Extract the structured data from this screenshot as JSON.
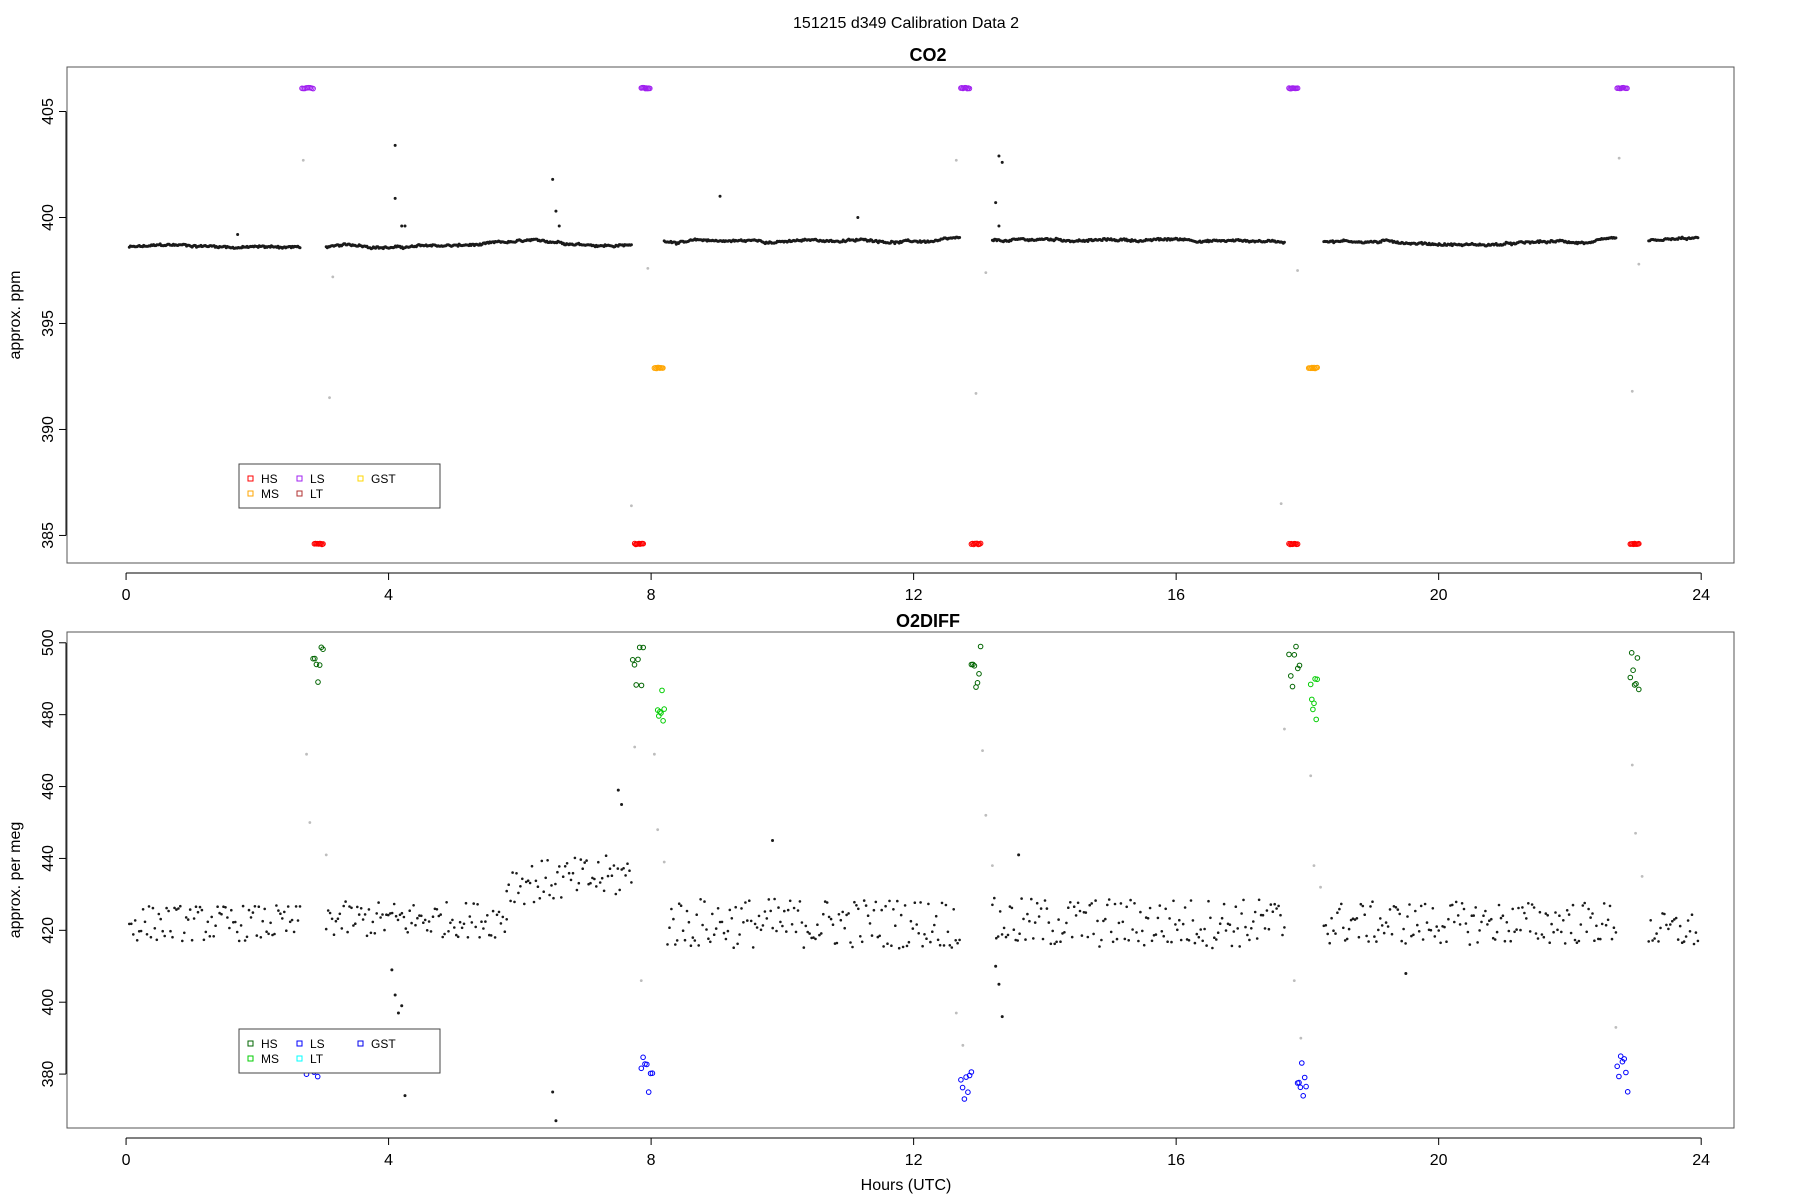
{
  "figure": {
    "title": "151215   d349   Calibration Data 2",
    "xlabel": "Hours (UTC)"
  },
  "colors": {
    "ambient": "#1a1a1a",
    "transition": "#bdbdbd",
    "co2": {
      "HS": "#ff0000",
      "MS": "#ffa500",
      "LS": "#a020f0",
      "LT": "#b03030",
      "GST": "#ffd700"
    },
    "o2diff": {
      "HS": "#006400",
      "MS": "#00cd00",
      "LS": "#0000ff",
      "LT": "#00ffff",
      "GST": "#0000ee"
    }
  },
  "chart_data": [
    {
      "type": "scatter",
      "title": "CO2",
      "xlabel": "",
      "ylabel": "approx. ppm",
      "xlim": [
        -0.9,
        24.5
      ],
      "ylim": [
        383.7,
        407.1
      ],
      "xticks": [
        "0",
        "4",
        "8",
        "12",
        "16",
        "20",
        "24"
      ],
      "yticks": [
        "385",
        "390",
        "395",
        "400",
        "405"
      ],
      "legend_position": "bottom-left",
      "legend": [
        "HS",
        "LS",
        "GST",
        "MS",
        "LT"
      ],
      "ambient_segments": [
        {
          "x_start": 0.05,
          "x_end": 2.65,
          "base": 398.6
        },
        {
          "x_start": 3.05,
          "x_end": 7.7,
          "base": 398.6
        },
        {
          "x_start": 8.2,
          "x_end": 12.7,
          "base": 398.9
        },
        {
          "x_start": 13.2,
          "x_end": 17.65,
          "base": 398.9
        },
        {
          "x_start": 18.25,
          "x_end": 22.7,
          "base": 398.9
        },
        {
          "x_start": 23.2,
          "x_end": 23.95,
          "base": 398.9
        }
      ],
      "calibration_series": [
        {
          "name": "LS",
          "value": 406.1,
          "windows": [
            [
              2.68,
              2.85
            ],
            [
              7.85,
              7.98
            ],
            [
              12.72,
              12.85
            ],
            [
              17.72,
              17.85
            ],
            [
              22.72,
              22.87
            ]
          ]
        },
        {
          "name": "MS",
          "value": 392.9,
          "windows": [
            [
              8.05,
              8.18
            ],
            [
              18.02,
              18.15
            ]
          ]
        },
        {
          "name": "HS",
          "value": 384.6,
          "windows": [
            [
              2.87,
              3.0
            ],
            [
              7.75,
              7.88
            ],
            [
              12.88,
              13.02
            ],
            [
              17.72,
              17.85
            ],
            [
              22.92,
              23.05
            ]
          ]
        }
      ],
      "outliers": [
        {
          "x": 4.1,
          "y": 403.4
        },
        {
          "x": 4.2,
          "y": 399.6
        },
        {
          "x": 4.25,
          "y": 399.6
        },
        {
          "x": 4.1,
          "y": 400.9
        },
        {
          "x": 6.5,
          "y": 401.8
        },
        {
          "x": 6.55,
          "y": 400.3
        },
        {
          "x": 6.6,
          "y": 399.6
        },
        {
          "x": 9.05,
          "y": 401.0
        },
        {
          "x": 11.15,
          "y": 400.0
        },
        {
          "x": 13.3,
          "y": 402.9
        },
        {
          "x": 13.35,
          "y": 402.6
        },
        {
          "x": 13.25,
          "y": 400.7
        },
        {
          "x": 13.3,
          "y": 399.6
        },
        {
          "x": 1.7,
          "y": 399.2
        }
      ],
      "transition_points": [
        {
          "x": 2.7,
          "y": 402.7
        },
        {
          "x": 3.15,
          "y": 397.2
        },
        {
          "x": 3.1,
          "y": 391.5
        },
        {
          "x": 7.7,
          "y": 386.4
        },
        {
          "x": 7.95,
          "y": 397.6
        },
        {
          "x": 12.65,
          "y": 402.7
        },
        {
          "x": 13.1,
          "y": 397.4
        },
        {
          "x": 12.95,
          "y": 391.7
        },
        {
          "x": 17.6,
          "y": 386.5
        },
        {
          "x": 17.85,
          "y": 397.5
        },
        {
          "x": 22.75,
          "y": 402.8
        },
        {
          "x": 23.05,
          "y": 397.8
        },
        {
          "x": 22.95,
          "y": 391.8
        }
      ]
    },
    {
      "type": "scatter",
      "title": "O2DIFF",
      "xlabel": "Hours (UTC)",
      "ylabel": "approx. per meg",
      "xlim": [
        -0.9,
        24.5
      ],
      "ylim": [
        365,
        503
      ],
      "xticks": [
        "0",
        "4",
        "8",
        "12",
        "16",
        "20",
        "24"
      ],
      "yticks": [
        "380",
        "400",
        "420",
        "440",
        "460",
        "480",
        "500"
      ],
      "legend_position": "bottom-left",
      "legend": [
        "HS",
        "LS",
        "GST",
        "MS",
        "LT"
      ],
      "ambient_segments": [
        {
          "x_start": 0.05,
          "x_end": 2.65,
          "base": 422,
          "spread": 5
        },
        {
          "x_start": 3.05,
          "x_end": 5.8,
          "base": 423,
          "spread": 5
        },
        {
          "x_start": 5.8,
          "x_end": 7.7,
          "base": 433,
          "spread": 6
        },
        {
          "x_start": 8.25,
          "x_end": 12.7,
          "base": 422,
          "spread": 7
        },
        {
          "x_start": 13.2,
          "x_end": 17.65,
          "base": 422,
          "spread": 7
        },
        {
          "x_start": 18.25,
          "x_end": 22.7,
          "base": 422,
          "spread": 6
        },
        {
          "x_start": 23.2,
          "x_end": 23.95,
          "base": 420,
          "spread": 5
        }
      ],
      "calibration_series": [
        {
          "name": "HS",
          "value": 493,
          "windows": [
            [
              2.85,
              3.0
            ],
            [
              7.72,
              7.88
            ],
            [
              12.88,
              13.02
            ],
            [
              17.72,
              17.88
            ],
            [
              22.92,
              23.05
            ]
          ]
        },
        {
          "name": "MS",
          "value": 484,
          "windows": [
            [
              8.1,
              8.2
            ],
            [
              18.05,
              18.15
            ]
          ]
        },
        {
          "name": "LS",
          "value": 379,
          "windows": [
            [
              2.75,
              2.92
            ],
            [
              7.85,
              8.02
            ],
            [
              12.72,
              12.88
            ],
            [
              17.85,
              17.98
            ],
            [
              22.72,
              22.88
            ]
          ]
        }
      ],
      "outliers": [
        {
          "x": 4.05,
          "y": 409
        },
        {
          "x": 4.1,
          "y": 402
        },
        {
          "x": 4.15,
          "y": 397
        },
        {
          "x": 4.2,
          "y": 399
        },
        {
          "x": 4.25,
          "y": 374
        },
        {
          "x": 6.5,
          "y": 375
        },
        {
          "x": 6.55,
          "y": 367
        },
        {
          "x": 7.5,
          "y": 459
        },
        {
          "x": 7.55,
          "y": 455
        },
        {
          "x": 9.85,
          "y": 445
        },
        {
          "x": 19.5,
          "y": 408
        },
        {
          "x": 13.25,
          "y": 410
        },
        {
          "x": 13.3,
          "y": 405
        },
        {
          "x": 13.35,
          "y": 396
        },
        {
          "x": 13.6,
          "y": 441
        }
      ],
      "transition_points": [
        {
          "x": 2.75,
          "y": 469
        },
        {
          "x": 2.8,
          "y": 450
        },
        {
          "x": 3.05,
          "y": 441
        },
        {
          "x": 7.75,
          "y": 471
        },
        {
          "x": 7.85,
          "y": 406
        },
        {
          "x": 8.05,
          "y": 469
        },
        {
          "x": 8.1,
          "y": 448
        },
        {
          "x": 8.2,
          "y": 439
        },
        {
          "x": 12.65,
          "y": 397
        },
        {
          "x": 12.75,
          "y": 388
        },
        {
          "x": 13.05,
          "y": 470
        },
        {
          "x": 13.1,
          "y": 452
        },
        {
          "x": 13.2,
          "y": 438
        },
        {
          "x": 17.65,
          "y": 476
        },
        {
          "x": 17.8,
          "y": 406
        },
        {
          "x": 17.9,
          "y": 390
        },
        {
          "x": 18.05,
          "y": 463
        },
        {
          "x": 18.1,
          "y": 438
        },
        {
          "x": 18.2,
          "y": 432
        },
        {
          "x": 22.7,
          "y": 393
        },
        {
          "x": 22.95,
          "y": 466
        },
        {
          "x": 23.0,
          "y": 447
        },
        {
          "x": 23.1,
          "y": 435
        }
      ]
    }
  ]
}
